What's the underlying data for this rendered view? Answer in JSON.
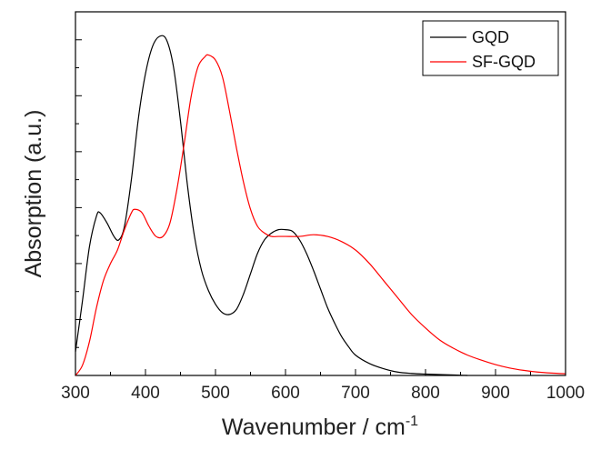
{
  "chart_data": {
    "type": "line",
    "title": "",
    "xlabel": "Wavenumber / cm",
    "xlabel_superscript": "-1",
    "ylabel": "Absorption (a.u.)",
    "xlim": [
      300,
      1000
    ],
    "ylim": [
      0,
      1.0
    ],
    "x_ticks": [
      "300",
      "400",
      "500",
      "600",
      "700",
      "800",
      "900",
      "1000"
    ],
    "y_ticks_labeled": false,
    "grid": false,
    "legend_position": "top-right",
    "series": [
      {
        "name": "GQD",
        "color": "#000000",
        "points": [
          [
            300,
            0.07
          ],
          [
            310,
            0.22
          ],
          [
            320,
            0.38
          ],
          [
            330,
            0.47
          ],
          [
            335,
            0.48
          ],
          [
            345,
            0.45
          ],
          [
            355,
            0.41
          ],
          [
            362,
            0.4
          ],
          [
            370,
            0.44
          ],
          [
            380,
            0.58
          ],
          [
            390,
            0.76
          ],
          [
            400,
            0.89
          ],
          [
            410,
            0.97
          ],
          [
            420,
            1.0
          ],
          [
            430,
            0.99
          ],
          [
            440,
            0.91
          ],
          [
            450,
            0.75
          ],
          [
            460,
            0.56
          ],
          [
            470,
            0.41
          ],
          [
            480,
            0.31
          ],
          [
            490,
            0.25
          ],
          [
            500,
            0.21
          ],
          [
            510,
            0.185
          ],
          [
            520,
            0.18
          ],
          [
            530,
            0.195
          ],
          [
            540,
            0.24
          ],
          [
            550,
            0.3
          ],
          [
            560,
            0.36
          ],
          [
            570,
            0.4
          ],
          [
            580,
            0.42
          ],
          [
            590,
            0.43
          ],
          [
            600,
            0.43
          ],
          [
            610,
            0.425
          ],
          [
            620,
            0.4
          ],
          [
            630,
            0.36
          ],
          [
            640,
            0.31
          ],
          [
            650,
            0.255
          ],
          [
            660,
            0.2
          ],
          [
            670,
            0.155
          ],
          [
            680,
            0.115
          ],
          [
            690,
            0.085
          ],
          [
            700,
            0.06
          ],
          [
            720,
            0.035
          ],
          [
            740,
            0.02
          ],
          [
            760,
            0.01
          ],
          [
            780,
            0.006
          ],
          [
            800,
            0.004
          ],
          [
            830,
            0.002
          ],
          [
            860,
            0.0
          ]
        ]
      },
      {
        "name": "SF-GQD",
        "color": "#ff0000",
        "points": [
          [
            300,
            0.0
          ],
          [
            310,
            0.03
          ],
          [
            320,
            0.1
          ],
          [
            330,
            0.2
          ],
          [
            340,
            0.28
          ],
          [
            350,
            0.33
          ],
          [
            360,
            0.37
          ],
          [
            370,
            0.43
          ],
          [
            380,
            0.48
          ],
          [
            385,
            0.49
          ],
          [
            395,
            0.48
          ],
          [
            405,
            0.44
          ],
          [
            415,
            0.41
          ],
          [
            425,
            0.41
          ],
          [
            435,
            0.45
          ],
          [
            445,
            0.55
          ],
          [
            455,
            0.68
          ],
          [
            465,
            0.82
          ],
          [
            475,
            0.91
          ],
          [
            485,
            0.94
          ],
          [
            490,
            0.945
          ],
          [
            500,
            0.93
          ],
          [
            510,
            0.88
          ],
          [
            520,
            0.78
          ],
          [
            530,
            0.67
          ],
          [
            540,
            0.57
          ],
          [
            550,
            0.49
          ],
          [
            560,
            0.44
          ],
          [
            570,
            0.42
          ],
          [
            580,
            0.41
          ],
          [
            590,
            0.41
          ],
          [
            600,
            0.41
          ],
          [
            620,
            0.41
          ],
          [
            640,
            0.415
          ],
          [
            660,
            0.41
          ],
          [
            680,
            0.395
          ],
          [
            700,
            0.37
          ],
          [
            720,
            0.33
          ],
          [
            740,
            0.28
          ],
          [
            760,
            0.23
          ],
          [
            780,
            0.18
          ],
          [
            800,
            0.14
          ],
          [
            820,
            0.105
          ],
          [
            840,
            0.08
          ],
          [
            860,
            0.06
          ],
          [
            880,
            0.045
          ],
          [
            900,
            0.032
          ],
          [
            920,
            0.022
          ],
          [
            940,
            0.015
          ],
          [
            960,
            0.01
          ],
          [
            980,
            0.007
          ],
          [
            1000,
            0.005
          ]
        ]
      }
    ]
  }
}
